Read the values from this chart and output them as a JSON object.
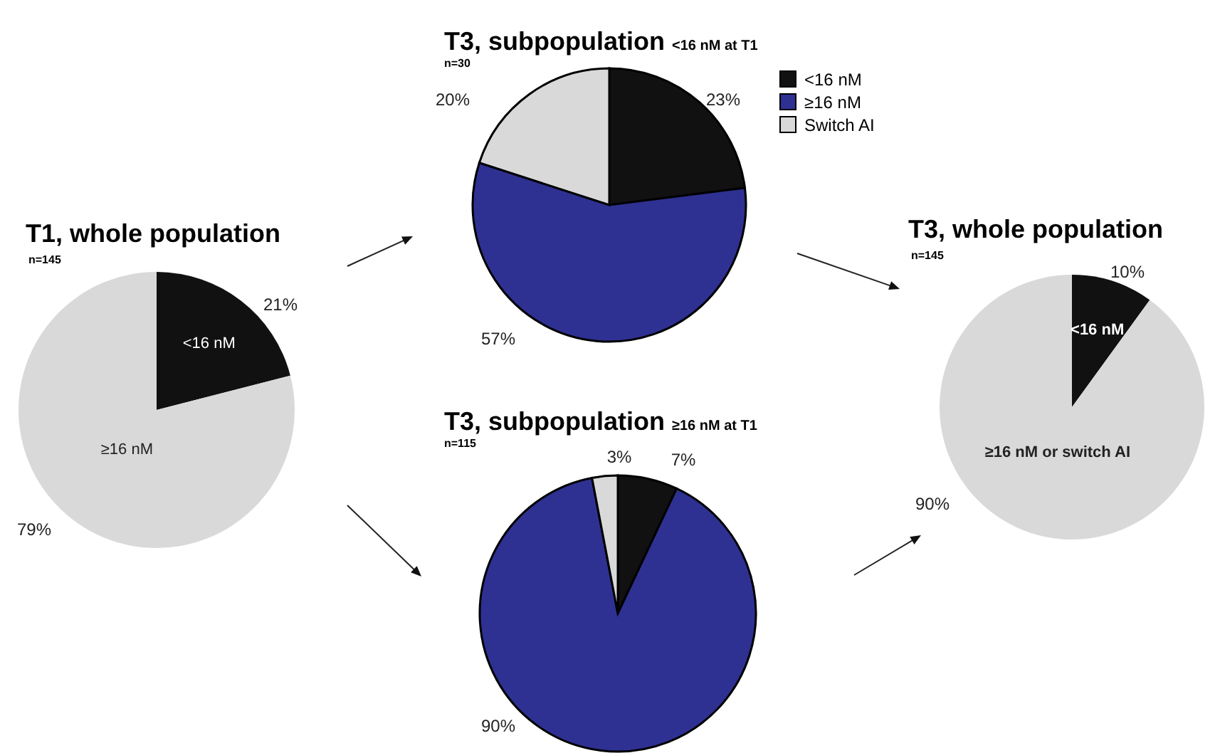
{
  "chart_data": [
    {
      "type": "pie",
      "title": "T1, whole population",
      "subtitle": "n=145",
      "categories": [
        "<16 nM",
        "≥16 nM"
      ],
      "values": [
        21,
        79
      ],
      "colors": [
        "#111111",
        "#d9d9d9"
      ],
      "value_labels": [
        "21%",
        "79%"
      ],
      "legend": false
    },
    {
      "type": "pie",
      "title": "T3, subpopulation",
      "annotations": [
        "<16 nM at T1"
      ],
      "subtitle": "n=30",
      "categories": [
        "<16 nM",
        "≥16 nM",
        "Switch AI"
      ],
      "values": [
        23,
        57,
        20
      ],
      "colors": [
        "#111111",
        "#2e3192",
        "#d9d9d9"
      ],
      "value_labels": [
        "23%",
        "57%",
        "20%"
      ],
      "legend": "top right"
    },
    {
      "type": "pie",
      "title": "T3, subpopulation",
      "annotations": [
        "≥16 nM at T1"
      ],
      "subtitle": "n=115",
      "categories": [
        null,
        null,
        null
      ],
      "values": [
        7,
        90,
        3
      ],
      "colors": [
        "#111111",
        "#2e3192",
        "#d9d9d9"
      ],
      "value_labels": [
        "7%",
        "90%",
        "3%"
      ],
      "legend": false
    },
    {
      "type": "pie",
      "title": "T3, whole population",
      "subtitle": "n=145",
      "categories": [
        "<16 nM",
        "≥16 nM or switch AI"
      ],
      "values": [
        10,
        90
      ],
      "colors": [
        "#111111",
        "#d9d9d9"
      ],
      "value_labels": [
        "10%",
        "90%"
      ],
      "legend": false
    }
  ]
}
